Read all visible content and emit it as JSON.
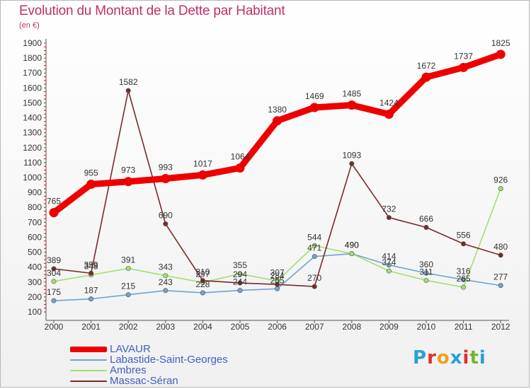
{
  "title": "Evolution du Montant de la Dette par Habitant",
  "subtitle": "(en €)",
  "logo": {
    "text": "Proxiti",
    "letter_colors": [
      "#2aa0d8",
      "#e03030",
      "#f0a020",
      "#2aa0d8",
      "#e03030",
      "#70b830",
      "#2aa0d8"
    ]
  },
  "chart_data": {
    "type": "line",
    "x": [
      "2000",
      "2001",
      "2002",
      "2003",
      "2004",
      "2005",
      "2006",
      "2007",
      "2008",
      "2009",
      "2010",
      "2011",
      "2012"
    ],
    "ylim": [
      100,
      1900
    ],
    "yticks": [
      100,
      200,
      300,
      400,
      500,
      600,
      700,
      800,
      900,
      1000,
      1100,
      1200,
      1300,
      1400,
      1500,
      1600,
      1700,
      1800,
      1900
    ],
    "grid": false,
    "legend_position": "bottom-left",
    "series": [
      {
        "name": "LAVAUR",
        "color": "#ee0000",
        "values": [
          765,
          955,
          973,
          993,
          1017,
          1064,
          1380,
          1469,
          1485,
          1424,
          1672,
          1737,
          1825
        ],
        "labels": [
          "765",
          "955",
          "973",
          "993",
          "1017",
          "1064",
          "1380",
          "1469",
          "1485",
          "1424",
          "1672",
          "1737",
          "1825"
        ],
        "emphasis": true
      },
      {
        "name": "Labastide-Saint-Georges",
        "color": "#6fa3d0",
        "values": [
          175,
          187,
          215,
          243,
          228,
          244,
          255,
          471,
          490,
          414,
          360,
          316,
          277
        ],
        "labels": [
          "175",
          "187",
          "215",
          "243",
          "228",
          "244",
          "255",
          "471",
          "490",
          "414",
          "360",
          "316",
          "277"
        ]
      },
      {
        "name": "Ambres",
        "color": "#a0e070",
        "values": [
          304,
          348,
          391,
          343,
          297,
          355,
          307,
          544,
          490,
          374,
          311,
          265,
          926
        ],
        "labels": [
          "304",
          "348",
          "391",
          "343",
          "297",
          "355",
          "307",
          "544",
          "490",
          "374",
          "311",
          "265",
          "926"
        ]
      },
      {
        "name": "Massac-Séran",
        "color": "#7a2a2a",
        "values": [
          389,
          359,
          1582,
          690,
          310,
          294,
          284,
          270,
          1093,
          732,
          666,
          556,
          480
        ],
        "labels": [
          "389",
          "359",
          "1582",
          "690",
          "310",
          "294",
          "284",
          "270",
          "1093",
          "732",
          "666",
          "556",
          "480"
        ]
      }
    ]
  }
}
